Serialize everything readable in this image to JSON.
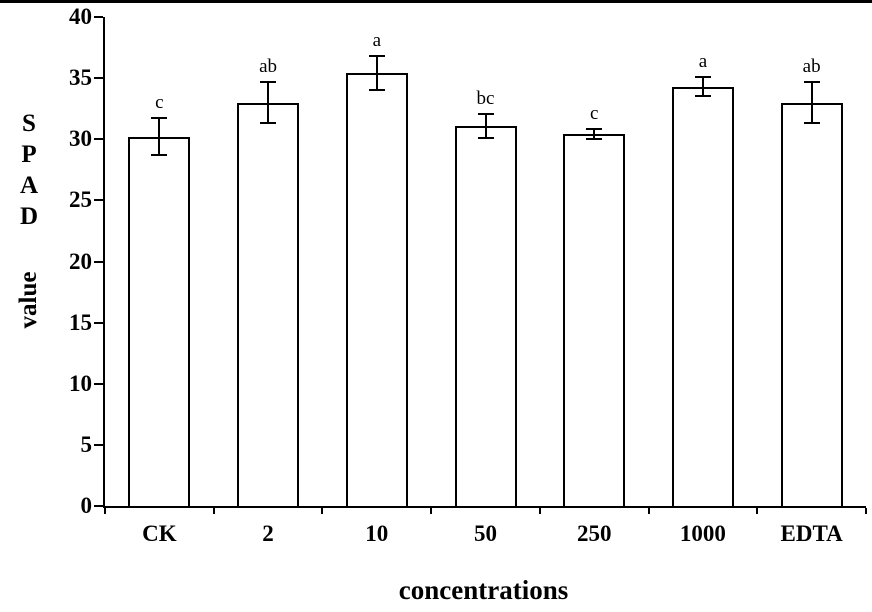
{
  "chart_data": {
    "type": "bar",
    "title": "",
    "xlabel": "concentrations",
    "ylabel_full": "S P A D value",
    "ylabel_stack": [
      "S",
      "P",
      "A",
      "D"
    ],
    "ylabel_word": "value",
    "categories": [
      "CK",
      "2",
      "10",
      "50",
      "250",
      "1000",
      "EDTA"
    ],
    "values": [
      30.2,
      33.0,
      35.4,
      31.1,
      30.4,
      34.3,
      33.0
    ],
    "error_bars": [
      1.5,
      1.7,
      1.4,
      1.0,
      0.4,
      0.8,
      1.7
    ],
    "sig_labels": [
      "c",
      "ab",
      "a",
      "bc",
      "c",
      "a",
      "ab"
    ],
    "ylim": [
      0,
      40
    ],
    "ytick_step": 5,
    "yticks": [
      0,
      5,
      10,
      15,
      20,
      25,
      30,
      35,
      40
    ],
    "grid": false,
    "legend": false,
    "bar_fill": "#ffffff",
    "axis_color": "#000000"
  }
}
